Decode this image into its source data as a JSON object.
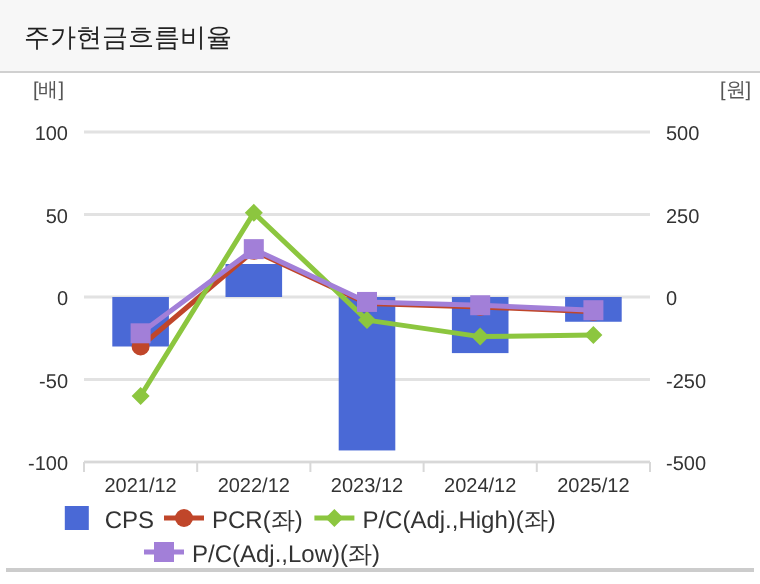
{
  "chart_data": {
    "type": "bar",
    "title": "주가현금흐름비율",
    "ylabel": "[배]",
    "y2label": "[원]",
    "categories": [
      "2021/12",
      "2022/12",
      "2023/12",
      "2024/12",
      "2025/12"
    ],
    "series": [
      {
        "name": "CPS",
        "axis": "y2",
        "color": "#4a69d6",
        "values": [
          -150,
          100,
          -465,
          -170,
          -75
        ]
      },
      {
        "name": "PCR(좌)",
        "type": "line",
        "color": "#c0462a",
        "marker": "circle",
        "values": [
          -30,
          28,
          -4,
          -6,
          -9
        ]
      },
      {
        "name": "P/C(Adj.,High)(좌)",
        "type": "line",
        "color": "#8cc63f",
        "marker": "diamond",
        "values": [
          -60,
          51,
          -14,
          -24,
          -23
        ]
      },
      {
        "name": "P/C(Adj.,Low)(좌)",
        "type": "line",
        "color": "#a27fd8",
        "marker": "square",
        "values": [
          -22,
          29,
          -3,
          -5,
          -8
        ]
      }
    ],
    "ylim": [
      -100,
      100
    ],
    "yticks": [
      -100,
      -50,
      0,
      50,
      100
    ],
    "y2lim": [
      -500,
      500
    ],
    "y2ticks": [
      -500,
      -250,
      0,
      250,
      500
    ],
    "grid": "y",
    "legend": "bottom"
  }
}
